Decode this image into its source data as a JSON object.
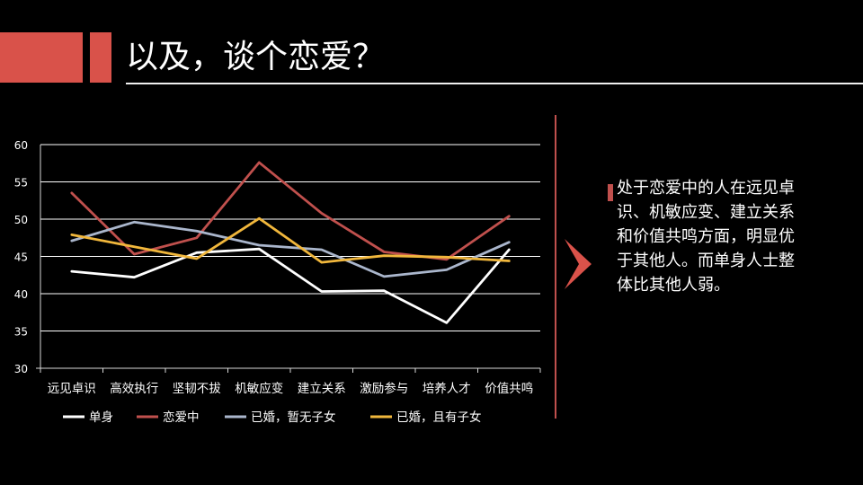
{
  "slide": {
    "title": "以及，谈个恋爱？",
    "accent_color": "#d9524a",
    "divider_color": "#c0504d",
    "callout": {
      "text": "处于恋爱中的人在远见卓识、机敏应变、建立关系和价值共鸣方面，明显优于其他人。而单身人士整体比其他人弱。"
    }
  },
  "chart_data": {
    "type": "line",
    "title": "",
    "xlabel": "",
    "ylabel": "",
    "categories": [
      "远见卓识",
      "高效执行",
      "坚韧不拔",
      "机敏应变",
      "建立关系",
      "激励参与",
      "培养人才",
      "价值共鸣"
    ],
    "ylim": [
      30,
      60
    ],
    "yticks": [
      30,
      35,
      40,
      45,
      50,
      55,
      60
    ],
    "grid": true,
    "legend_position": "bottom",
    "series": [
      {
        "name": "单身",
        "color": "#ffffff",
        "values": [
          43,
          42.2,
          45.5,
          46,
          40.3,
          40.4,
          36.1,
          45.9
        ]
      },
      {
        "name": "恋爱中",
        "color": "#c0504d",
        "values": [
          53.5,
          45.3,
          47.5,
          57.6,
          50.8,
          45.6,
          44.6,
          50.4
        ]
      },
      {
        "name": "已婚，暂无子女",
        "color": "#aab6cc",
        "values": [
          47.1,
          49.6,
          48.4,
          46.5,
          45.9,
          42.3,
          43.2,
          46.9
        ]
      },
      {
        "name": "已婚，且有子女",
        "color": "#f1b73c",
        "values": [
          47.9,
          46.3,
          44.7,
          50.1,
          44.2,
          45.1,
          44.9,
          44.4
        ]
      }
    ]
  }
}
